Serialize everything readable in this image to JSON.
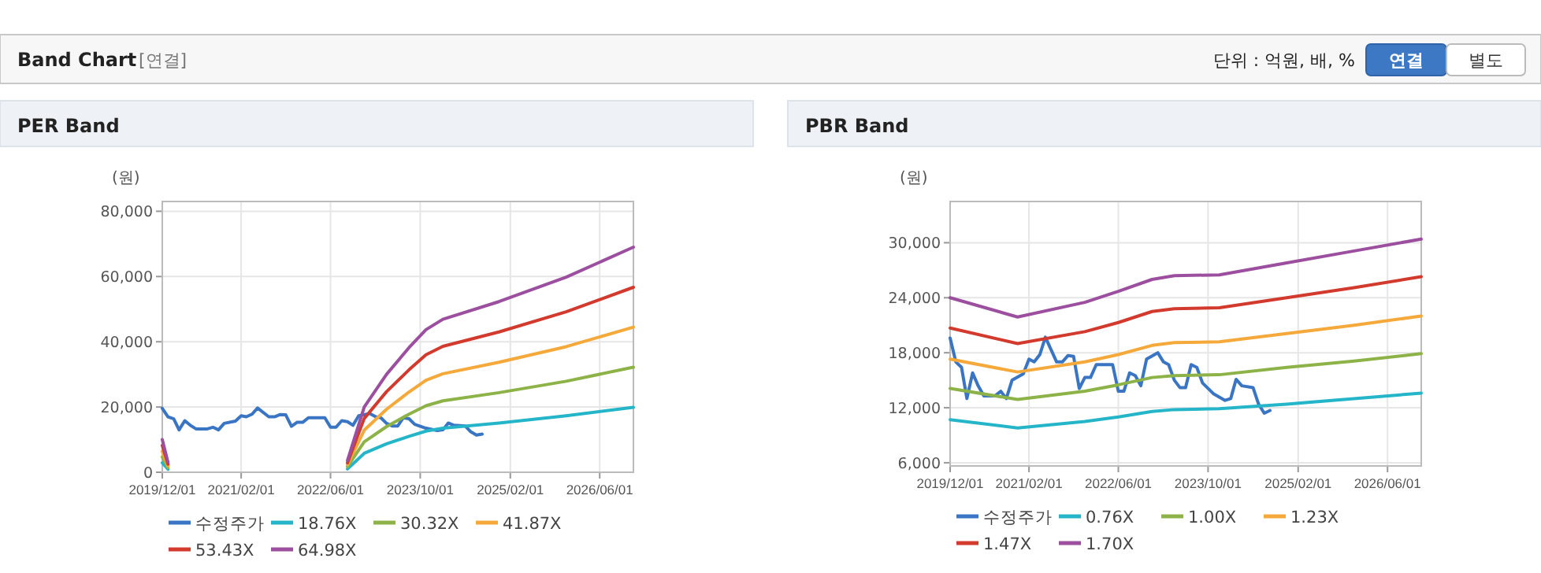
{
  "chart_data": [
    {
      "type": "line",
      "title": "PER Band",
      "ylabel": "(원)",
      "annotations": [
        "Band Chart",
        "[연결]",
        "단위 : 억원, 배, %",
        "연결",
        "별도"
      ],
      "xlim": [
        "2019-12-01",
        "2026-12-01"
      ],
      "xticks": [
        {
          "value": "2019-12-01",
          "label": "2019/12/01"
        },
        {
          "value": "2021-02-01",
          "label": "2021/02/01"
        },
        {
          "value": "2022-06-01",
          "label": "2022/06/01"
        },
        {
          "value": "2023-10-01",
          "label": "2023/10/01"
        },
        {
          "value": "2025-02-01",
          "label": "2025/02/01"
        },
        {
          "value": "2026-06-01",
          "label": "2026/06/01"
        }
      ],
      "ylim": [
        0,
        83000
      ],
      "yticks": [
        0,
        {
          "value": 20000,
          "label": "20,000"
        },
        {
          "value": 40000,
          "label": "40,000"
        },
        {
          "value": 60000,
          "label": "60,000"
        },
        {
          "value": 80000,
          "label": "80,000"
        }
      ],
      "grid": true,
      "legend": "bottom",
      "marker": "none",
      "line_style": "solid",
      "series": [
        {
          "name": "수정주가",
          "color": "#3a75c4",
          "x": [
            "2019-12-01",
            "2020-01-01",
            "2020-02-01",
            "2020-03-01",
            "2020-04-01",
            "2020-05-01",
            "2020-06-01",
            "2020-08-01",
            "2020-09-01",
            "2020-10-01",
            "2020-11-01",
            "2021-01-01",
            "2021-02-01",
            "2021-03-01",
            "2021-04-01",
            "2021-05-01",
            "2021-07-01",
            "2021-08-01",
            "2021-09-01",
            "2021-10-01",
            "2021-11-01",
            "2021-12-01",
            "2022-01-01",
            "2022-02-01",
            "2022-05-01",
            "2022-06-01",
            "2022-07-01",
            "2022-08-01",
            "2022-09-01",
            "2022-10-01",
            "2022-11-01",
            "2023-01-01",
            "2023-02-01",
            "2023-03-01",
            "2023-04-01",
            "2023-05-01",
            "2023-06-01",
            "2023-07-01",
            "2023-08-01",
            "2023-09-01",
            "2023-11-01",
            "2024-01-01",
            "2024-02-01",
            "2024-03-01",
            "2024-04-01",
            "2024-06-01",
            "2024-07-01",
            "2024-08-01",
            "2024-09-01"
          ],
          "values": [
            19600,
            17000,
            16400,
            13000,
            15800,
            14400,
            13300,
            13300,
            13800,
            13000,
            15000,
            15700,
            17300,
            17000,
            17800,
            19700,
            17000,
            17000,
            17700,
            17600,
            14100,
            15300,
            15300,
            16700,
            16700,
            13800,
            13800,
            15800,
            15500,
            14400,
            17300,
            18000,
            17000,
            16700,
            15000,
            14200,
            14200,
            16700,
            16400,
            14700,
            13500,
            12800,
            13000,
            15100,
            14400,
            14200,
            12400,
            11400,
            11700
          ]
        },
        {
          "name": "18.76X",
          "color": "#25b5c9",
          "x": [
            "2019-12-01",
            "2020-01-01",
            "2020-02-01",
            "2022-09-01",
            "2022-12-01",
            "2023-04-01",
            "2023-08-01",
            "2023-11-01",
            "2024-02-01",
            "2024-12-01",
            "2025-12-01",
            "2026-12-01"
          ],
          "values": [
            2900,
            900,
            null,
            1000,
            5800,
            8700,
            11000,
            12600,
            13500,
            15100,
            17300,
            19900
          ]
        },
        {
          "name": "30.32X",
          "color": "#8db348",
          "x": [
            "2019-12-01",
            "2020-01-01",
            "2020-02-01",
            "2022-09-01",
            "2022-12-01",
            "2023-04-01",
            "2023-08-01",
            "2023-11-01",
            "2024-02-01",
            "2024-12-01",
            "2025-12-01",
            "2026-12-01"
          ],
          "values": [
            4700,
            1400,
            null,
            1700,
            9300,
            14000,
            17800,
            20400,
            21900,
            24400,
            27900,
            32200
          ]
        },
        {
          "name": "41.87X",
          "color": "#f4a93a",
          "x": [
            "2019-12-01",
            "2020-01-01",
            "2020-02-01",
            "2022-09-01",
            "2022-12-01",
            "2023-04-01",
            "2023-08-01",
            "2023-11-01",
            "2024-02-01",
            "2024-12-01",
            "2025-12-01",
            "2026-12-01"
          ],
          "values": [
            6400,
            1900,
            null,
            2300,
            12900,
            19300,
            24600,
            28200,
            30200,
            33700,
            38500,
            44500
          ]
        },
        {
          "name": "53.43X",
          "color": "#d23a2d",
          "x": [
            "2019-12-01",
            "2020-01-01",
            "2020-02-01",
            "2022-09-01",
            "2022-12-01",
            "2023-04-01",
            "2023-08-01",
            "2023-11-01",
            "2024-02-01",
            "2024-12-01",
            "2025-12-01",
            "2026-12-01"
          ],
          "values": [
            8200,
            2500,
            null,
            2900,
            16500,
            24700,
            31400,
            36000,
            38600,
            43000,
            49200,
            56700
          ]
        },
        {
          "name": "64.98X",
          "color": "#9b4f9e",
          "x": [
            "2019-12-01",
            "2020-01-01",
            "2020-02-01",
            "2022-09-01",
            "2022-12-01",
            "2023-04-01",
            "2023-08-01",
            "2023-11-01",
            "2024-02-01",
            "2024-12-01",
            "2025-12-01",
            "2026-12-01"
          ],
          "values": [
            10000,
            3000,
            null,
            3600,
            20000,
            30000,
            38200,
            43700,
            46900,
            52300,
            59800,
            69000
          ]
        }
      ]
    },
    {
      "type": "line",
      "title": "PBR Band",
      "ylabel": "(원)",
      "xlim": [
        "2019-12-01",
        "2026-12-01"
      ],
      "xticks": [
        {
          "value": "2019-12-01",
          "label": "2019/12/01"
        },
        {
          "value": "2021-02-01",
          "label": "2021/02/01"
        },
        {
          "value": "2022-06-01",
          "label": "2022/06/01"
        },
        {
          "value": "2023-10-01",
          "label": "2023/10/01"
        },
        {
          "value": "2025-02-01",
          "label": "2025/02/01"
        },
        {
          "value": "2026-06-01",
          "label": "2026/06/01"
        }
      ],
      "ylim": [
        5650,
        34500
      ],
      "yticks": [
        {
          "value": 6000,
          "label": "6,000"
        },
        {
          "value": 12000,
          "label": "12,000"
        },
        {
          "value": 18000,
          "label": "18,000"
        },
        {
          "value": 24000,
          "label": "24,000"
        },
        {
          "value": 30000,
          "label": "30,000"
        }
      ],
      "grid": true,
      "legend": "bottom",
      "marker": "none",
      "line_style": "solid",
      "series": [
        {
          "name": "수정주가",
          "color": "#3a75c4",
          "x": [
            "2019-12-01",
            "2020-01-01",
            "2020-02-01",
            "2020-03-01",
            "2020-04-01",
            "2020-05-01",
            "2020-06-01",
            "2020-08-01",
            "2020-09-01",
            "2020-10-01",
            "2020-11-01",
            "2021-01-01",
            "2021-02-01",
            "2021-03-01",
            "2021-04-01",
            "2021-05-01",
            "2021-07-01",
            "2021-08-01",
            "2021-09-01",
            "2021-10-01",
            "2021-11-01",
            "2021-12-01",
            "2022-01-01",
            "2022-02-01",
            "2022-05-01",
            "2022-06-01",
            "2022-07-01",
            "2022-08-01",
            "2022-09-01",
            "2022-10-01",
            "2022-11-01",
            "2023-01-01",
            "2023-02-01",
            "2023-03-01",
            "2023-04-01",
            "2023-05-01",
            "2023-06-01",
            "2023-07-01",
            "2023-08-01",
            "2023-09-01",
            "2023-11-01",
            "2024-01-01",
            "2024-02-01",
            "2024-03-01",
            "2024-04-01",
            "2024-06-01",
            "2024-07-01",
            "2024-08-01",
            "2024-09-01"
          ],
          "values": [
            19600,
            17000,
            16400,
            13000,
            15800,
            14400,
            13300,
            13300,
            13800,
            13000,
            15000,
            15700,
            17300,
            17000,
            17800,
            19700,
            17000,
            17000,
            17700,
            17600,
            14100,
            15300,
            15300,
            16700,
            16700,
            13800,
            13800,
            15800,
            15500,
            14400,
            17300,
            18000,
            17000,
            16700,
            15000,
            14200,
            14200,
            16700,
            16400,
            14700,
            13500,
            12800,
            13000,
            15100,
            14400,
            14200,
            12400,
            11400,
            11700
          ]
        },
        {
          "name": "0.76X",
          "color": "#25b5c9",
          "x": [
            "2019-12-01",
            "2020-12-01",
            "2021-12-01",
            "2022-06-01",
            "2022-12-01",
            "2023-04-01",
            "2023-12-01",
            "2024-12-01",
            "2025-12-01",
            "2026-12-01"
          ],
          "values": [
            10700,
            9800,
            10500,
            11000,
            11600,
            11800,
            11900,
            12400,
            13000,
            13600
          ]
        },
        {
          "name": "1.00X",
          "color": "#8db348",
          "x": [
            "2019-12-01",
            "2020-12-01",
            "2021-12-01",
            "2022-06-01",
            "2022-12-01",
            "2023-04-01",
            "2023-12-01",
            "2024-12-01",
            "2025-12-01",
            "2026-12-01"
          ],
          "values": [
            14100,
            12900,
            13800,
            14500,
            15300,
            15500,
            15600,
            16400,
            17100,
            17900
          ]
        },
        {
          "name": "1.23X",
          "color": "#f4a93a",
          "x": [
            "2019-12-01",
            "2020-12-01",
            "2021-12-01",
            "2022-06-01",
            "2022-12-01",
            "2023-04-01",
            "2023-12-01",
            "2024-12-01",
            "2025-12-01",
            "2026-12-01"
          ],
          "values": [
            17300,
            15900,
            17000,
            17800,
            18800,
            19100,
            19200,
            20100,
            21000,
            22000
          ]
        },
        {
          "name": "1.47X",
          "color": "#d23a2d",
          "x": [
            "2019-12-01",
            "2020-12-01",
            "2021-12-01",
            "2022-06-01",
            "2022-12-01",
            "2023-04-01",
            "2023-12-01",
            "2024-12-01",
            "2025-12-01",
            "2026-12-01"
          ],
          "values": [
            20700,
            19000,
            20300,
            21300,
            22500,
            22800,
            22900,
            24000,
            25100,
            26300
          ]
        },
        {
          "name": "1.70X",
          "color": "#9b4f9e",
          "x": [
            "2019-12-01",
            "2020-12-01",
            "2021-12-01",
            "2022-06-01",
            "2022-12-01",
            "2023-04-01",
            "2023-12-01",
            "2024-12-01",
            "2025-12-01",
            "2026-12-01"
          ],
          "values": [
            24000,
            21900,
            23500,
            24700,
            26000,
            26400,
            26500,
            27800,
            29100,
            30400
          ]
        }
      ]
    }
  ]
}
